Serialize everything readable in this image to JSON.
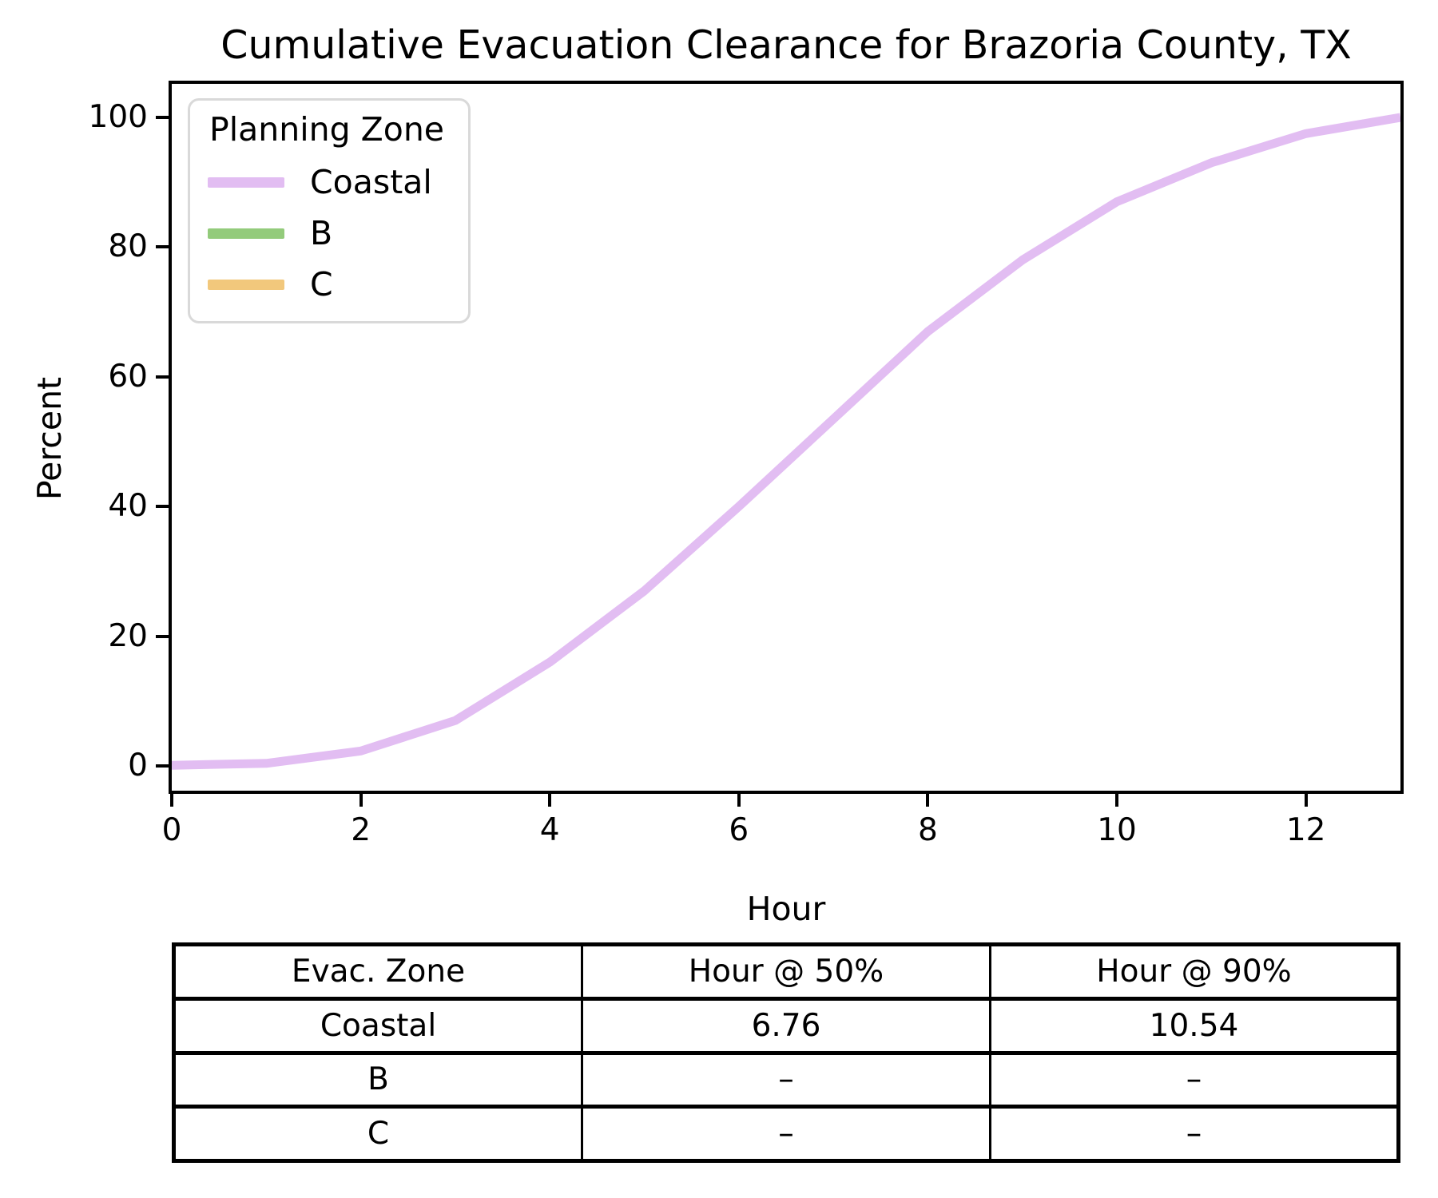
{
  "title": "Cumulative Evacuation Clearance for Brazoria County, TX",
  "axes": {
    "x": {
      "label": "Hour",
      "ticks": [
        "0",
        "2",
        "4",
        "6",
        "8",
        "10",
        "12"
      ],
      "tick_values": [
        0,
        2,
        4,
        6,
        8,
        10,
        12
      ]
    },
    "y": {
      "label": "Percent",
      "ticks": [
        "0",
        "20",
        "40",
        "60",
        "80",
        "100"
      ],
      "tick_values": [
        0,
        20,
        40,
        60,
        80,
        100
      ]
    }
  },
  "legend": {
    "title": "Planning Zone",
    "entries": [
      {
        "label": "Coastal",
        "color": "#e2bdf2"
      },
      {
        "label": "B",
        "color": "#93cb7b"
      },
      {
        "label": "C",
        "color": "#f2c87c"
      }
    ]
  },
  "chart_data": {
    "type": "line",
    "title": "Cumulative Evacuation Clearance for Brazoria County, TX",
    "xlabel": "Hour",
    "ylabel": "Percent",
    "xlim": [
      0,
      13
    ],
    "ylim": [
      -4,
      105
    ],
    "grid": false,
    "legend_position": "upper left",
    "legend_title": "Planning Zone",
    "x": [
      0,
      1,
      2,
      3,
      4,
      5,
      6,
      7,
      8,
      9,
      10,
      11,
      12,
      13
    ],
    "series": [
      {
        "name": "Coastal",
        "color": "#e2bdf2",
        "values": [
          0.1,
          0.4,
          2.3,
          7.0,
          16.0,
          27.0,
          40.0,
          53.5,
          67.0,
          78.0,
          87.0,
          93.0,
          97.5,
          100.0
        ]
      },
      {
        "name": "B",
        "color": "#93cb7b",
        "values": []
      },
      {
        "name": "C",
        "color": "#f2c87c",
        "values": []
      }
    ]
  },
  "table": {
    "headers": [
      "Evac. Zone",
      "Hour @ 50%",
      "Hour @ 90%"
    ],
    "rows": [
      [
        "Coastal",
        "6.76",
        "10.54"
      ],
      [
        "B",
        "–",
        "–"
      ],
      [
        "C",
        "–",
        "–"
      ]
    ]
  }
}
